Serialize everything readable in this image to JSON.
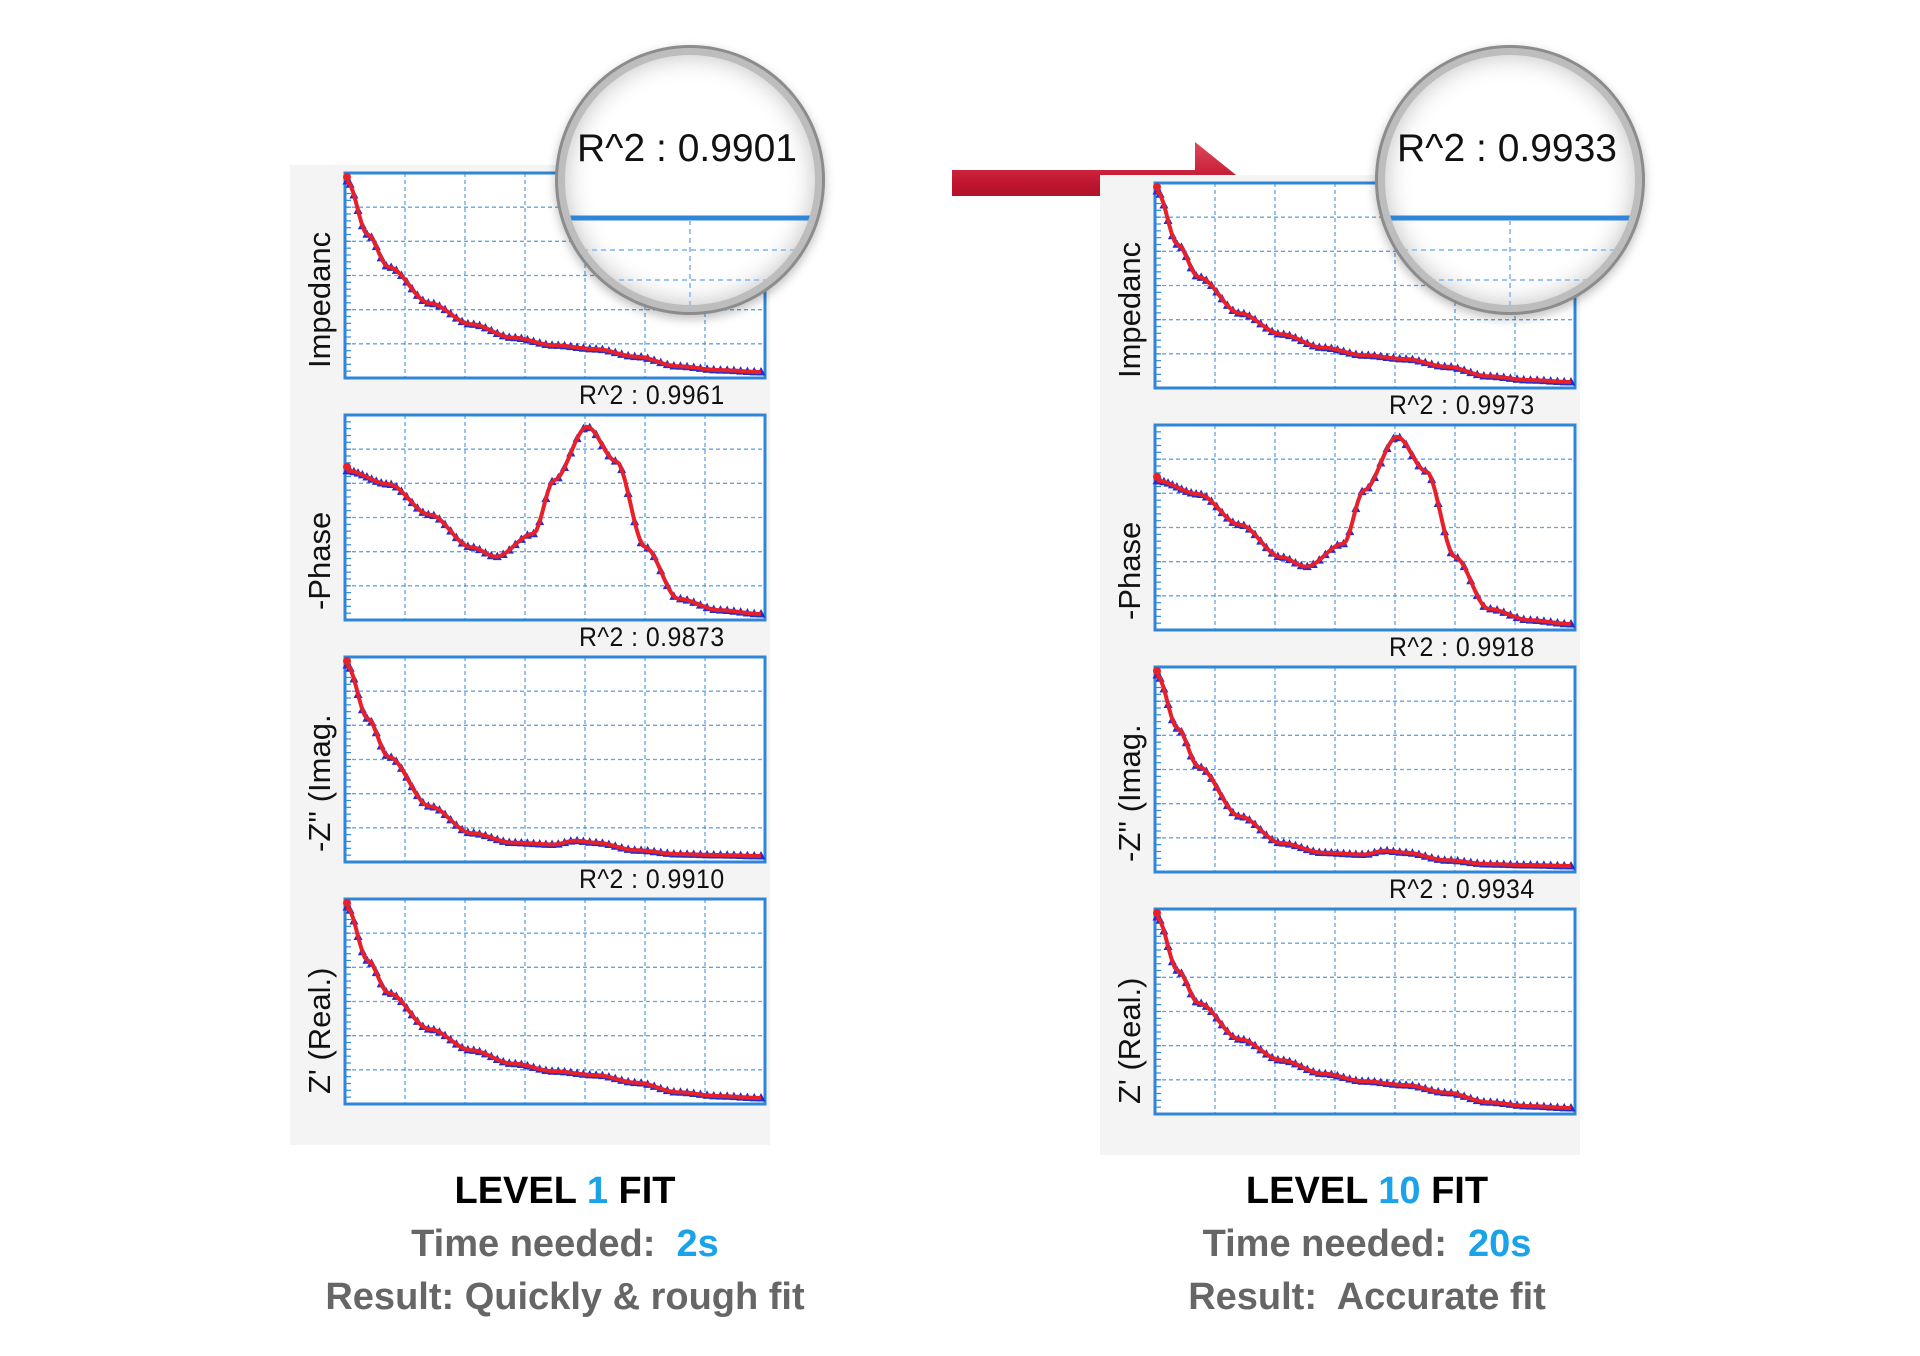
{
  "colors": {
    "fit_line": "#e8202a",
    "data_points": "#1f2fd0",
    "axis_frame": "#2f86d8",
    "grid": "#2f86d8",
    "accent": "#1aa3e8",
    "arrow": "#c0152f"
  },
  "left": {
    "magnifier": {
      "label": "R^2",
      "sep": ":",
      "value": "0.9901"
    },
    "r2_values": [
      "0.9961",
      "0.9873",
      "0.9910"
    ],
    "caption": {
      "level_prefix": "LEVEL",
      "level_value": "1",
      "level_suffix": "FIT",
      "time_label": "Time needed:",
      "time_value": "2s",
      "result_label": "Result:",
      "result_value": "Quickly & rough fit"
    }
  },
  "right": {
    "magnifier": {
      "label": "R^2",
      "sep": ":",
      "value": "0.9933"
    },
    "r2_values": [
      "0.9973",
      "0.9918",
      "0.9934"
    ],
    "caption": {
      "level_prefix": "LEVEL",
      "level_value": "10",
      "level_suffix": "FIT",
      "time_label": "Time needed:",
      "time_value": "20s",
      "result_label": "Result:",
      "result_value": "Accurate fit"
    }
  },
  "r2_label": "R^2",
  "r2_sep": ":",
  "chart_data": [
    {
      "type": "scatter",
      "ylabel": "Impedanc",
      "series_shape": "decay",
      "x": [
        0,
        0.05,
        0.1,
        0.2,
        0.3,
        0.4,
        0.5,
        0.6,
        0.7,
        0.8,
        0.9,
        1.0
      ],
      "y": [
        1.0,
        0.72,
        0.55,
        0.36,
        0.25,
        0.18,
        0.14,
        0.12,
        0.08,
        0.03,
        0.01,
        0.0
      ]
    },
    {
      "type": "scatter",
      "ylabel": "-Phase",
      "series_shape": "dip-peak",
      "x": [
        0,
        0.1,
        0.2,
        0.3,
        0.36,
        0.45,
        0.5,
        0.58,
        0.65,
        0.72,
        0.8,
        0.9,
        1.0
      ],
      "y": [
        0.75,
        0.68,
        0.52,
        0.35,
        0.3,
        0.42,
        0.7,
        0.98,
        0.8,
        0.35,
        0.08,
        0.02,
        0.0
      ]
    },
    {
      "type": "scatter",
      "ylabel": "-Z'' (Imag.",
      "series_shape": "decay-bump",
      "x": [
        0,
        0.05,
        0.1,
        0.2,
        0.3,
        0.4,
        0.5,
        0.55,
        0.6,
        0.7,
        0.8,
        0.9,
        1.0
      ],
      "y": [
        1.0,
        0.72,
        0.52,
        0.26,
        0.12,
        0.07,
        0.06,
        0.08,
        0.07,
        0.03,
        0.01,
        0.005,
        0.0
      ]
    },
    {
      "type": "scatter",
      "ylabel": "Z' (Real.)",
      "series_shape": "decay",
      "x": [
        0,
        0.05,
        0.1,
        0.2,
        0.3,
        0.4,
        0.5,
        0.6,
        0.7,
        0.8,
        0.9,
        1.0
      ],
      "y": [
        1.0,
        0.72,
        0.55,
        0.36,
        0.25,
        0.18,
        0.14,
        0.12,
        0.08,
        0.03,
        0.01,
        0.0
      ]
    }
  ]
}
